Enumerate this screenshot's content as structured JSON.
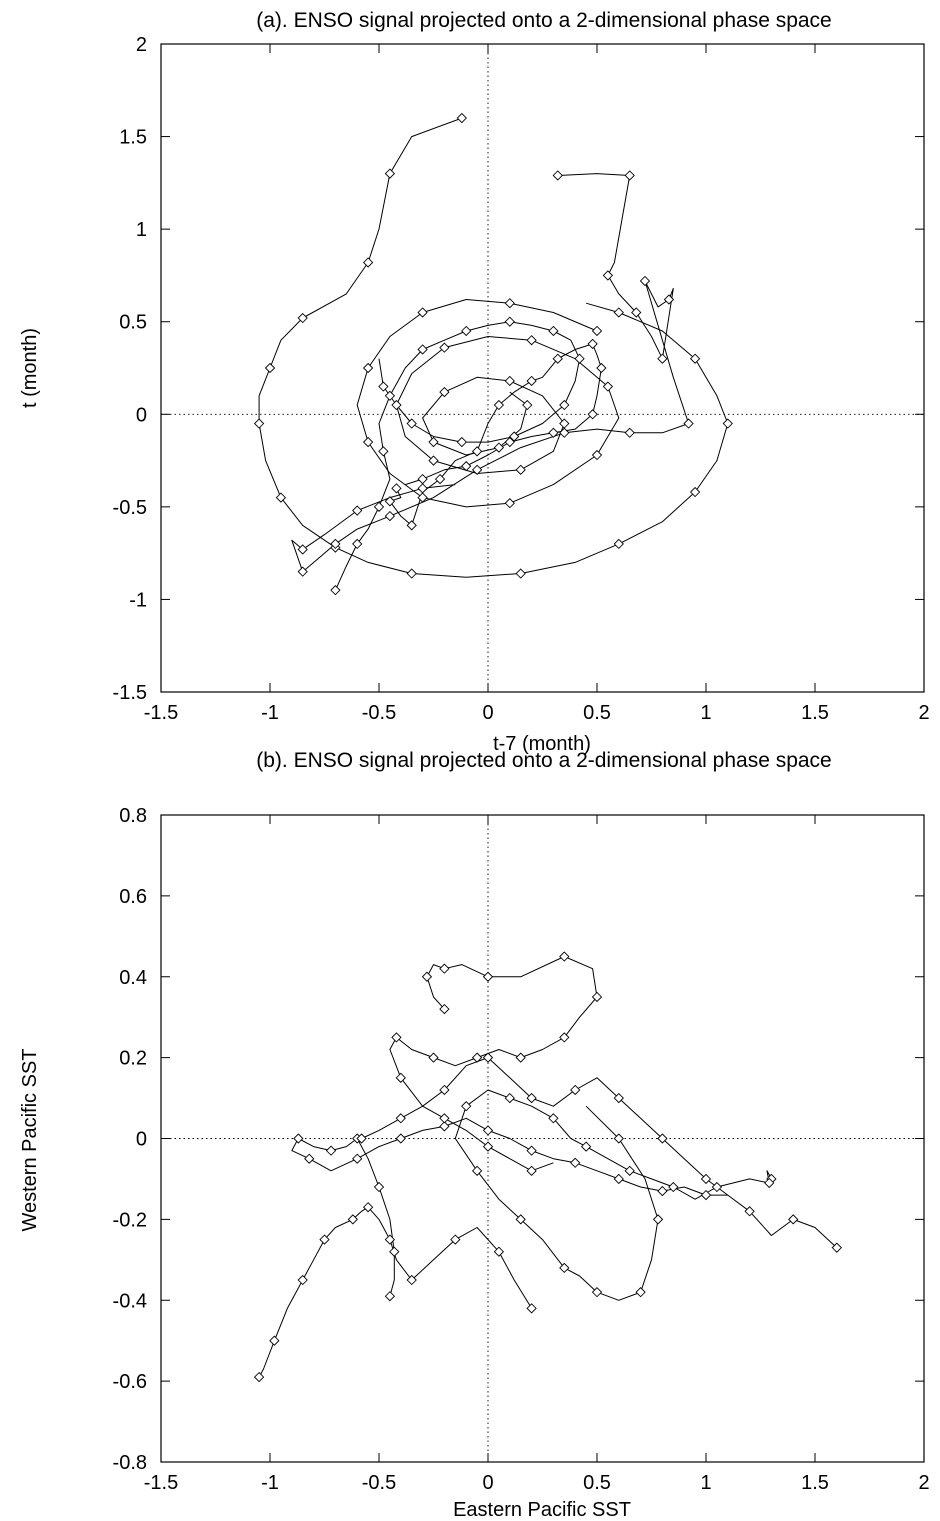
{
  "chart_data": [
    {
      "type": "line",
      "title": "(a). ENSO signal projected onto a 2-dimensional phase space",
      "xlabel": "t-7 (month)",
      "ylabel": "t (month)",
      "xlim": [
        -1.5,
        2
      ],
      "ylim": [
        -1.5,
        2
      ],
      "xticks": [
        -1.5,
        -1,
        -0.5,
        0,
        0.5,
        1,
        1.5,
        2
      ],
      "yticks": [
        -1.5,
        -1,
        -0.5,
        0,
        0.5,
        1,
        1.5,
        2
      ],
      "xtick_labels": [
        "-1.5",
        "-1",
        "-0.5",
        "0",
        "0.5",
        "1",
        "1.5",
        "2"
      ],
      "ytick_labels": [
        "-1.5",
        "-1",
        "-0.5",
        "0",
        "0.5",
        "1",
        "1.5",
        "2"
      ],
      "grid": false,
      "zero_lines": "dotted at x=0 and y=0",
      "marker": "diamond",
      "series": [
        {
          "x": [
            -0.12,
            -0.35,
            -0.45,
            -0.5,
            -0.55,
            -0.65,
            -0.85,
            -0.95,
            -1.0,
            -1.05,
            -1.05,
            -1.02,
            -0.95,
            -0.85,
            -0.7,
            -0.55,
            -0.35,
            -0.1,
            0.15,
            0.4,
            0.6,
            0.8,
            0.95,
            1.05,
            1.1,
            1.05,
            0.95,
            0.8,
            0.6,
            0.45
          ],
          "y": [
            1.6,
            1.5,
            1.3,
            1.0,
            0.82,
            0.65,
            0.52,
            0.4,
            0.25,
            0.1,
            -0.05,
            -0.25,
            -0.45,
            -0.6,
            -0.72,
            -0.8,
            -0.86,
            -0.88,
            -0.86,
            -0.8,
            -0.7,
            -0.58,
            -0.42,
            -0.25,
            -0.05,
            0.1,
            0.3,
            0.45,
            0.55,
            0.6
          ]
        },
        {
          "x": [
            0.5,
            0.3,
            0.1,
            -0.1,
            -0.3,
            -0.45,
            -0.55,
            -0.6,
            -0.55,
            -0.45,
            -0.3,
            -0.1,
            0.1,
            0.3,
            0.5,
            0.6,
            0.55,
            0.4,
            0.2,
            0.0,
            -0.2,
            -0.35,
            -0.42,
            -0.38,
            -0.25,
            -0.05,
            0.15,
            0.3,
            0.35,
            0.25,
            0.1,
            -0.05,
            -0.2,
            -0.3,
            -0.25,
            -0.1,
            0.05,
            0.15,
            0.18,
            0.1
          ],
          "y": [
            0.45,
            0.55,
            0.6,
            0.62,
            0.55,
            0.42,
            0.25,
            0.05,
            -0.15,
            -0.32,
            -0.45,
            -0.5,
            -0.48,
            -0.38,
            -0.22,
            -0.02,
            0.15,
            0.3,
            0.4,
            0.42,
            0.36,
            0.22,
            0.05,
            -0.12,
            -0.25,
            -0.32,
            -0.3,
            -0.2,
            -0.05,
            0.1,
            0.18,
            0.2,
            0.12,
            -0.02,
            -0.15,
            -0.22,
            -0.18,
            -0.08,
            0.05,
            0.12
          ]
        },
        {
          "x": [
            0.32,
            0.5,
            0.65,
            0.58,
            0.55,
            0.6,
            0.68,
            0.75,
            0.8,
            0.85,
            0.83,
            0.78,
            0.72,
            0.85,
            0.92,
            0.8,
            0.65,
            0.5,
            0.35,
            0.15,
            -0.05,
            -0.25,
            -0.45,
            -0.6,
            -0.7,
            -0.78,
            -0.85,
            -0.9,
            -0.85,
            -0.75,
            -0.6,
            -0.45,
            -0.3,
            -0.15
          ],
          "y": [
            1.29,
            1.3,
            1.29,
            0.82,
            0.75,
            0.65,
            0.55,
            0.42,
            0.3,
            0.68,
            0.62,
            0.58,
            0.72,
            0.2,
            -0.05,
            -0.1,
            -0.1,
            -0.08,
            -0.1,
            -0.18,
            -0.3,
            -0.45,
            -0.55,
            -0.62,
            -0.7,
            -0.78,
            -0.85,
            -0.68,
            -0.73,
            -0.65,
            -0.52,
            -0.45,
            -0.4,
            -0.38
          ]
        },
        {
          "x": [
            -0.42,
            -0.4,
            -0.45,
            -0.4,
            -0.35,
            -0.3,
            -0.22,
            -0.15,
            -0.05,
            0.0,
            0.05,
            0.12,
            0.2,
            0.25,
            0.32,
            0.4,
            0.48,
            0.5,
            0.52,
            0.5,
            0.48,
            0.4,
            0.3,
            0.2,
            0.1,
            0.0,
            -0.1,
            -0.2,
            -0.3,
            -0.38
          ],
          "y": [
            -0.4,
            -0.45,
            -0.47,
            -0.55,
            -0.6,
            -0.42,
            -0.35,
            -0.25,
            -0.2,
            -0.05,
            0.05,
            0.12,
            0.18,
            0.2,
            0.3,
            0.35,
            0.38,
            0.32,
            0.25,
            0.1,
            0.0,
            -0.08,
            -0.1,
            -0.12,
            -0.15,
            -0.22,
            -0.28,
            -0.3,
            -0.35,
            -0.38
          ]
        },
        {
          "x": [
            -0.7,
            -0.65,
            -0.6,
            -0.55,
            -0.5,
            -0.45,
            -0.48,
            -0.5,
            -0.45,
            -0.38,
            -0.3,
            -0.2,
            -0.1,
            0.0,
            0.1,
            0.2,
            0.3,
            0.38,
            0.42,
            0.4,
            0.35,
            0.25,
            0.12,
            0.0,
            -0.12,
            -0.25,
            -0.35,
            -0.42,
            -0.48,
            -0.5
          ],
          "y": [
            -0.95,
            -0.82,
            -0.7,
            -0.62,
            -0.5,
            -0.35,
            -0.2,
            -0.05,
            0.1,
            0.25,
            0.35,
            0.4,
            0.45,
            0.48,
            0.5,
            0.48,
            0.45,
            0.4,
            0.3,
            0.18,
            0.05,
            -0.05,
            -0.12,
            -0.15,
            -0.15,
            -0.12,
            -0.05,
            0.05,
            0.15,
            0.3
          ]
        }
      ]
    },
    {
      "type": "line",
      "title": "(b). ENSO signal projected onto a 2-dimensional phase space",
      "xlabel": "Eastern Pacific SST",
      "ylabel": "Western Pacific SST",
      "xlim": [
        -1.5,
        2
      ],
      "ylim": [
        -0.8,
        0.8
      ],
      "xticks": [
        -1.5,
        -1,
        -0.5,
        0,
        0.5,
        1,
        1.5,
        2
      ],
      "yticks": [
        -0.8,
        -0.6,
        -0.4,
        -0.2,
        0,
        0.2,
        0.4,
        0.6,
        0.8
      ],
      "xtick_labels": [
        "-1.5",
        "-1",
        "-0.5",
        "0",
        "0.5",
        "1",
        "1.5",
        "2"
      ],
      "ytick_labels": [
        "-0.8",
        "-0.6",
        "-0.4",
        "-0.2",
        "0",
        "0.2",
        "0.4",
        "0.6",
        "0.8"
      ],
      "grid": false,
      "zero_lines": "dotted at x=0 and y=0",
      "marker": "diamond",
      "series": [
        {
          "x": [
            -1.05,
            -1.03,
            -0.98,
            -0.92,
            -0.85,
            -0.8,
            -0.75,
            -0.7,
            -0.62,
            -0.58,
            -0.55,
            -0.5,
            -0.45,
            -0.42,
            -0.35,
            -0.25,
            -0.15,
            -0.05,
            0.05,
            0.12,
            0.2
          ],
          "y": [
            -0.59,
            -0.57,
            -0.5,
            -0.42,
            -0.35,
            -0.3,
            -0.25,
            -0.22,
            -0.2,
            -0.18,
            -0.17,
            -0.2,
            -0.25,
            -0.3,
            -0.35,
            -0.3,
            -0.25,
            -0.22,
            -0.28,
            -0.35,
            -0.42
          ]
        },
        {
          "x": [
            -0.45,
            -0.43,
            -0.43,
            -0.45,
            -0.5,
            -0.55,
            -0.6,
            -0.65,
            -0.72,
            -0.8,
            -0.87,
            -0.9,
            -0.82,
            -0.72,
            -0.6,
            -0.5,
            -0.4,
            -0.3,
            -0.2,
            -0.1,
            0.0,
            0.1,
            0.2,
            0.3,
            0.4,
            0.5,
            0.6,
            0.7,
            0.8,
            0.9,
            1.0,
            1.1
          ],
          "y": [
            -0.39,
            -0.35,
            -0.28,
            -0.2,
            -0.12,
            -0.05,
            0.0,
            -0.02,
            -0.03,
            -0.02,
            0.0,
            -0.03,
            -0.05,
            -0.08,
            -0.05,
            -0.02,
            0.0,
            0.02,
            0.03,
            0.05,
            0.02,
            0.0,
            -0.03,
            -0.05,
            -0.06,
            -0.08,
            -0.1,
            -0.12,
            -0.13,
            -0.12,
            -0.14,
            -0.14
          ]
        },
        {
          "x": [
            -0.2,
            -0.25,
            -0.28,
            -0.25,
            -0.2,
            -0.12,
            0.0,
            0.15,
            0.35,
            0.48,
            0.5,
            0.42,
            0.35,
            0.25,
            0.15,
            0.05,
            -0.05,
            -0.15,
            -0.25,
            -0.35,
            -0.42,
            -0.45,
            -0.4,
            -0.3,
            -0.2,
            -0.1,
            0.0,
            0.1,
            0.2,
            0.3
          ],
          "y": [
            0.32,
            0.35,
            0.4,
            0.43,
            0.42,
            0.43,
            0.4,
            0.4,
            0.45,
            0.42,
            0.35,
            0.3,
            0.25,
            0.22,
            0.2,
            0.22,
            0.2,
            0.18,
            0.2,
            0.22,
            0.25,
            0.22,
            0.15,
            0.08,
            0.05,
            0.02,
            -0.02,
            -0.05,
            -0.08,
            -0.06
          ]
        },
        {
          "x": [
            1.6,
            1.5,
            1.4,
            1.3,
            1.2,
            1.1,
            1.0,
            0.9,
            0.8,
            0.7,
            0.6,
            0.5,
            0.4,
            0.3,
            0.2,
            0.1,
            0.0,
            -0.1,
            -0.2,
            -0.3,
            -0.4,
            -0.5,
            -0.58
          ],
          "y": [
            -0.27,
            -0.22,
            -0.2,
            -0.24,
            -0.18,
            -0.14,
            -0.1,
            -0.05,
            0.0,
            0.05,
            0.1,
            0.15,
            0.12,
            0.08,
            0.1,
            0.15,
            0.2,
            0.18,
            0.12,
            0.08,
            0.05,
            0.02,
            0.0
          ]
        },
        {
          "x": [
            1.3,
            1.28,
            1.29,
            1.2,
            1.05,
            0.95,
            0.85,
            0.75,
            0.65,
            0.55,
            0.45,
            0.38,
            0.3,
            0.2,
            0.1,
            0.0,
            -0.1,
            -0.15,
            -0.05,
            0.05,
            0.15,
            0.25,
            0.35,
            0.42,
            0.5,
            0.6,
            0.7,
            0.75,
            0.78,
            0.72,
            0.6,
            0.45
          ],
          "y": [
            -0.1,
            -0.08,
            -0.11,
            -0.1,
            -0.12,
            -0.15,
            -0.12,
            -0.1,
            -0.08,
            -0.05,
            -0.02,
            0.0,
            0.05,
            0.08,
            0.1,
            0.12,
            0.08,
            0.0,
            -0.08,
            -0.15,
            -0.2,
            -0.25,
            -0.32,
            -0.34,
            -0.38,
            -0.4,
            -0.38,
            -0.3,
            -0.2,
            -0.1,
            0.0,
            0.08
          ]
        }
      ]
    }
  ]
}
